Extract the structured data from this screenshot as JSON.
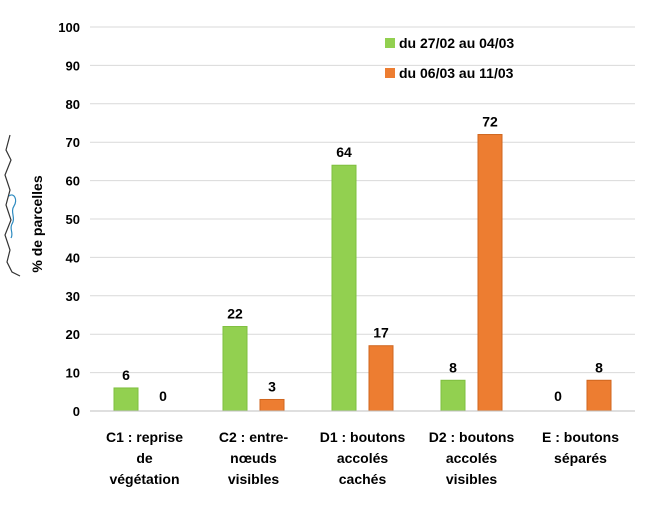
{
  "chart_data": {
    "type": "bar",
    "categories": [
      [
        "C1 : reprise",
        "de",
        "végétation"
      ],
      [
        "C2 : entre-",
        "nœuds",
        "visibles"
      ],
      [
        "D1 : boutons",
        "accolés",
        "cachés"
      ],
      [
        "D2 : boutons",
        "accolés",
        "visibles"
      ],
      [
        "E : boutons",
        "séparés"
      ]
    ],
    "series": [
      {
        "name": "du 27/02 au 04/03",
        "values": [
          6,
          22,
          64,
          8,
          0
        ],
        "color": "#92d050"
      },
      {
        "name": "du 06/03 au 11/03",
        "values": [
          0,
          3,
          17,
          72,
          8
        ],
        "color": "#ed7d31"
      }
    ],
    "ylabel": "% de parcelles",
    "ylim": [
      0,
      100
    ],
    "yticks": [
      0,
      10,
      20,
      30,
      40,
      50,
      60,
      70,
      80,
      90,
      100
    ],
    "grid": true,
    "legend": "top-right"
  }
}
